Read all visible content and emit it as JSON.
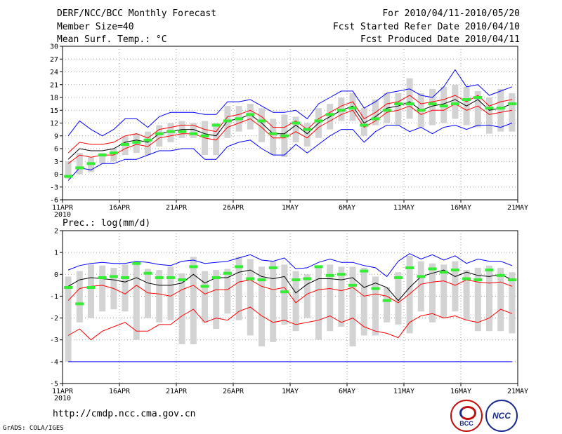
{
  "header": {
    "title": "DERF/NCC/BCC Monthly Forecast",
    "member_size": "Member Size=40",
    "variable": "Mean Surf. Temp.: °C",
    "for_period": "For 2010/04/11-2010/05/20",
    "fcst_started": "Fcst Started Refer Date 2010/04/10",
    "fcst_produced": "Fcst Produced Date 2010/04/11"
  },
  "footer": {
    "url": "http://cmdp.ncc.cma.gov.cn",
    "credit": "GrADS: COLA/IGES",
    "logo_bcc": "BCC",
    "logo_ncc": "NCC"
  },
  "chart_data": [
    {
      "type": "line",
      "title": "Mean Surf. Temp.: °C",
      "xlabel": "",
      "ylabel": "°C",
      "ylim": [
        -6,
        30
      ],
      "yticks": [
        -6,
        -3,
        0,
        3,
        6,
        9,
        12,
        15,
        18,
        21,
        24,
        27,
        30
      ],
      "x_tick_labels": [
        "11APR",
        "16APR",
        "21APR",
        "26APR",
        "1MAY",
        "6MAY",
        "11MAY",
        "16MAY",
        "21MAY"
      ],
      "x_tick_days": [
        0,
        5,
        10,
        15,
        20,
        25,
        30,
        35,
        40
      ],
      "year_label": "2010",
      "grid": true,
      "days": 40,
      "series": [
        {
          "name": "max",
          "color": "#0000ff",
          "values": [
            9.0,
            12.5,
            10.5,
            9.0,
            10.5,
            13.0,
            13.0,
            11.0,
            13.5,
            14.5,
            14.5,
            14.5,
            14.0,
            14.0,
            17.0,
            17.0,
            17.5,
            16.0,
            14.5,
            14.5,
            15.0,
            13.0,
            16.5,
            18.0,
            19.5,
            19.5,
            15.5,
            17.0,
            19.0,
            19.5,
            20.0,
            18.5,
            18.0,
            20.5,
            24.5,
            20.5,
            21.0,
            18.5,
            19.5,
            20.5
          ]
        },
        {
          "name": "upper",
          "color": "#ff0000",
          "values": [
            5.0,
            7.5,
            7.0,
            7.0,
            7.5,
            9.0,
            9.5,
            8.5,
            10.5,
            11.0,
            11.5,
            11.5,
            10.5,
            10.0,
            13.5,
            14.0,
            15.0,
            13.5,
            11.0,
            11.0,
            12.5,
            10.5,
            13.0,
            14.5,
            16.0,
            17.0,
            13.0,
            14.5,
            16.5,
            17.0,
            18.5,
            16.5,
            17.0,
            17.5,
            18.5,
            17.0,
            18.5,
            16.0,
            17.0,
            17.5
          ]
        },
        {
          "name": "mean",
          "color": "#000000",
          "values": [
            3.5,
            6.0,
            5.5,
            5.5,
            6.0,
            7.5,
            8.0,
            7.5,
            9.5,
            10.0,
            10.5,
            10.5,
            9.5,
            9.0,
            12.5,
            13.0,
            14.0,
            12.0,
            9.5,
            9.5,
            11.5,
            9.5,
            12.0,
            13.5,
            15.0,
            16.0,
            12.0,
            13.5,
            15.5,
            16.0,
            17.0,
            15.0,
            16.0,
            16.5,
            17.5,
            16.0,
            17.5,
            15.0,
            15.5,
            16.5
          ]
        },
        {
          "name": "lower",
          "color": "#ff0000",
          "values": [
            2.5,
            4.5,
            4.0,
            4.5,
            4.5,
            6.0,
            7.0,
            6.5,
            8.5,
            9.0,
            9.5,
            9.5,
            8.5,
            8.0,
            11.0,
            12.0,
            13.0,
            11.0,
            8.5,
            8.5,
            10.0,
            8.5,
            11.0,
            12.5,
            14.0,
            15.0,
            11.0,
            12.5,
            14.5,
            15.0,
            16.0,
            14.0,
            15.0,
            15.0,
            16.5,
            15.0,
            16.0,
            14.0,
            14.5,
            15.0
          ]
        },
        {
          "name": "min",
          "color": "#0000ff",
          "values": [
            -1.5,
            1.5,
            1.0,
            2.5,
            2.5,
            3.5,
            3.5,
            4.5,
            5.5,
            5.5,
            6.0,
            6.0,
            3.5,
            3.5,
            6.5,
            7.5,
            8.0,
            6.0,
            4.5,
            4.5,
            7.0,
            5.0,
            7.0,
            9.0,
            10.5,
            10.5,
            7.5,
            10.0,
            11.5,
            11.5,
            10.0,
            11.0,
            9.5,
            11.0,
            11.5,
            10.5,
            11.5,
            11.5,
            11.0,
            12.0
          ]
        }
      ],
      "box_low": [
        -1.0,
        0.0,
        0.5,
        2.5,
        3.0,
        4.5,
        5.0,
        4.5,
        6.5,
        7.5,
        8.5,
        8.5,
        4.5,
        4.5,
        8.5,
        10.0,
        10.5,
        7.5,
        4.5,
        4.0,
        7.5,
        6.5,
        8.5,
        10.5,
        12.5,
        12.5,
        9.0,
        11.5,
        12.0,
        11.5,
        13.0,
        11.0,
        11.5,
        12.0,
        13.0,
        11.5,
        11.0,
        9.5,
        10.0,
        10.0
      ],
      "box_high": [
        3.0,
        5.0,
        4.0,
        5.0,
        6.0,
        9.0,
        9.5,
        10.0,
        11.5,
        12.0,
        12.5,
        12.0,
        12.5,
        12.0,
        16.0,
        16.0,
        16.5,
        15.5,
        13.0,
        14.0,
        13.5,
        12.0,
        15.5,
        16.5,
        18.0,
        19.0,
        15.5,
        17.5,
        19.0,
        19.0,
        22.5,
        19.0,
        20.0,
        20.5,
        21.0,
        20.5,
        19.5,
        18.0,
        20.0,
        19.0
      ],
      "observed": [
        -0.5,
        1.5,
        2.5,
        4.5,
        5.0,
        7.0,
        7.5,
        8.0,
        9.5,
        10.0,
        10.0,
        9.5,
        9.0,
        11.5,
        12.5,
        13.0,
        14.0,
        12.5,
        9.5,
        9.0,
        12.0,
        10.5,
        12.5,
        14.0,
        15.0,
        15.5,
        11.5,
        13.0,
        15.0,
        16.5,
        16.5,
        15.0,
        16.5,
        16.0,
        16.5,
        17.5,
        18.0,
        15.5,
        15.5,
        16.5
      ]
    },
    {
      "type": "line",
      "title": "Prec.: log(mm/d)",
      "xlabel": "",
      "ylabel": "log(mm/d)",
      "ylim": [
        -5,
        2
      ],
      "yticks": [
        -5,
        -4,
        -3,
        -2,
        -1,
        0,
        1,
        2
      ],
      "x_tick_labels": [
        "11APR",
        "16APR",
        "21APR",
        "26APR",
        "1MAY",
        "6MAY",
        "11MAY",
        "16MAY",
        "21MAY"
      ],
      "x_tick_days": [
        0,
        5,
        10,
        15,
        20,
        25,
        30,
        35,
        40
      ],
      "year_label": "2010",
      "grid": true,
      "days": 40,
      "series": [
        {
          "name": "max",
          "color": "#0000ff",
          "values": [
            0.2,
            0.4,
            0.5,
            0.55,
            0.5,
            0.5,
            0.6,
            0.55,
            0.45,
            0.4,
            0.6,
            0.65,
            0.5,
            0.55,
            0.6,
            0.75,
            0.9,
            0.65,
            0.6,
            0.75,
            0.25,
            0.3,
            0.55,
            0.7,
            0.55,
            0.55,
            0.4,
            0.3,
            -0.1,
            0.6,
            0.95,
            0.7,
            0.9,
            0.65,
            0.85,
            0.5,
            0.7,
            0.6,
            0.6,
            0.4
          ]
        },
        {
          "name": "upper",
          "color": "#000000",
          "values": [
            -0.55,
            -0.25,
            -0.15,
            -0.2,
            -0.25,
            -0.35,
            -0.15,
            -0.4,
            -0.5,
            -0.5,
            -0.4,
            0.0,
            -0.4,
            -0.15,
            -0.15,
            0.1,
            0.2,
            -0.1,
            -0.2,
            -0.1,
            -0.85,
            -0.45,
            -0.2,
            -0.2,
            -0.25,
            -0.15,
            -0.6,
            -0.4,
            -0.6,
            -1.2,
            -0.6,
            -0.1,
            0.05,
            0.2,
            -0.1,
            0.1,
            -0.05,
            -0.1,
            0.0,
            -0.25
          ]
        },
        {
          "name": "mean",
          "color": "#ff0000",
          "values": [
            -1.2,
            -0.65,
            -0.55,
            -0.5,
            -0.65,
            -0.9,
            -0.5,
            -0.85,
            -0.9,
            -1.0,
            -0.7,
            -0.5,
            -0.9,
            -0.7,
            -0.7,
            -0.35,
            -0.25,
            -0.55,
            -0.7,
            -0.6,
            -1.3,
            -0.9,
            -0.7,
            -0.65,
            -0.75,
            -0.6,
            -1.0,
            -0.9,
            -1.0,
            -1.3,
            -0.9,
            -0.45,
            -0.35,
            -0.3,
            -0.5,
            -0.25,
            -0.35,
            -0.4,
            -0.35,
            -0.55
          ]
        },
        {
          "name": "lower",
          "color": "#ff0000",
          "values": [
            -2.8,
            -2.5,
            -3.0,
            -2.6,
            -2.4,
            -2.2,
            -2.6,
            -2.6,
            -2.3,
            -2.3,
            -1.9,
            -1.6,
            -2.2,
            -2.0,
            -2.1,
            -1.7,
            -1.5,
            -1.9,
            -2.2,
            -2.1,
            -2.3,
            -2.2,
            -2.1,
            -1.9,
            -2.2,
            -2.0,
            -2.4,
            -2.6,
            -2.7,
            -2.9,
            -2.2,
            -1.9,
            -1.8,
            -2.0,
            -1.9,
            -2.1,
            -2.2,
            -2.0,
            -1.6,
            -1.8
          ]
        },
        {
          "name": "min",
          "color": "#0000ff",
          "values": [
            -4.0,
            -4.0,
            -4.0,
            -4.0,
            -4.0,
            -4.0,
            -4.0,
            -4.0,
            -4.0,
            -4.0,
            -4.0,
            -4.0,
            -4.0,
            -4.0,
            -4.0,
            -4.0,
            -4.0,
            -4.0,
            -4.0,
            -4.0,
            -4.0,
            -4.0,
            -4.0,
            -4.0,
            -4.0,
            -4.0,
            -4.0,
            -4.0,
            -4.0,
            -4.0,
            -4.0,
            -4.0,
            -4.0,
            -4.0,
            -4.0,
            -4.0,
            -4.0,
            -4.0,
            -4.0,
            -4.0
          ]
        }
      ],
      "box_low": [
        -4.0,
        -2.2,
        -2.0,
        -1.7,
        -1.6,
        -1.7,
        -3.0,
        -2.0,
        -2.2,
        -2.1,
        -3.2,
        -3.2,
        -2.2,
        -2.5,
        -1.8,
        -2.1,
        -2.8,
        -3.3,
        -3.1,
        -2.3,
        -2.6,
        -2.0,
        -3.0,
        -2.6,
        -2.4,
        -3.3,
        -2.8,
        -2.8,
        -2.2,
        -2.3,
        -2.7,
        -1.7,
        -2.2,
        -2.0,
        -1.7,
        -2.1,
        -2.6,
        -2.6,
        -2.6,
        -2.7
      ],
      "box_high": [
        -0.1,
        0.15,
        0.45,
        0.4,
        0.3,
        0.45,
        0.55,
        0.25,
        0.2,
        0.35,
        0.05,
        0.8,
        0.15,
        0.2,
        0.25,
        0.8,
        0.7,
        0.35,
        0.6,
        0.45,
        0.15,
        0.0,
        0.35,
        0.45,
        0.35,
        0.35,
        0.3,
        -0.1,
        -0.6,
        0.1,
        0.85,
        0.6,
        0.5,
        0.45,
        0.6,
        0.2,
        0.3,
        0.4,
        0.3,
        0.1
      ],
      "observed": [
        -0.6,
        -1.35,
        -0.6,
        -0.15,
        -0.1,
        -0.15,
        0.5,
        0.05,
        -0.15,
        -0.15,
        -0.25,
        0.35,
        -0.55,
        -0.15,
        0.05,
        0.35,
        -0.2,
        -0.25,
        0.3,
        -0.8,
        -0.25,
        -0.2,
        0.35,
        -0.05,
        0.0,
        -0.5,
        0.15,
        -0.65,
        -1.2,
        -0.15,
        0.3,
        -0.1,
        0.25,
        0.1,
        0.2,
        -0.2,
        -0.25,
        0.2,
        -0.05,
        -0.25
      ]
    }
  ]
}
